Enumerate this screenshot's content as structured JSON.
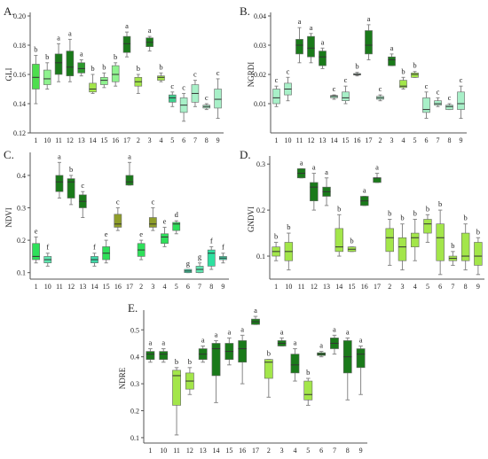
{
  "chart_data": [
    {
      "panel": "A.",
      "type": "box",
      "ylabel": "GLI",
      "ylim": [
        0.12,
        0.2
      ],
      "yticks": [
        "0.12",
        "0.14",
        "0.16",
        "0.18",
        "0.20"
      ],
      "ytick_vals": [
        0.12,
        0.14,
        0.16,
        0.18,
        0.2
      ],
      "categories": [
        "1",
        "10",
        "11",
        "12",
        "13",
        "14",
        "15",
        "16",
        "17",
        "2",
        "3",
        "4",
        "5",
        "6",
        "7",
        "8",
        "9"
      ],
      "boxes": [
        {
          "min": 0.14,
          "q1": 0.15,
          "med": 0.158,
          "q3": 0.167,
          "max": 0.173,
          "letter": "b",
          "color": "#4ede4e"
        },
        {
          "min": 0.15,
          "q1": 0.153,
          "med": 0.157,
          "q3": 0.163,
          "max": 0.168,
          "letter": "b",
          "color": "#8ff38f"
        },
        {
          "min": 0.155,
          "q1": 0.16,
          "med": 0.168,
          "q3": 0.174,
          "max": 0.181,
          "letter": "a",
          "color": "#1a7a1a"
        },
        {
          "min": 0.155,
          "q1": 0.159,
          "med": 0.165,
          "q3": 0.176,
          "max": 0.184,
          "letter": "a",
          "color": "#1a7a1a"
        },
        {
          "min": 0.159,
          "q1": 0.161,
          "med": 0.164,
          "q3": 0.168,
          "max": 0.17,
          "letter": "a",
          "color": "#2d9a2d"
        },
        {
          "min": 0.147,
          "q1": 0.148,
          "med": 0.15,
          "q3": 0.154,
          "max": 0.16,
          "letter": "b",
          "color": "#a3e64a"
        },
        {
          "min": 0.151,
          "q1": 0.153,
          "med": 0.156,
          "q3": 0.158,
          "max": 0.161,
          "letter": "b",
          "color": "#8ff38f"
        },
        {
          "min": 0.152,
          "q1": 0.155,
          "med": 0.16,
          "q3": 0.166,
          "max": 0.168,
          "letter": "b",
          "color": "#8ff38f"
        },
        {
          "min": 0.172,
          "q1": 0.175,
          "med": 0.181,
          "q3": 0.186,
          "max": 0.189,
          "letter": "a",
          "color": "#1a7a1a"
        },
        {
          "min": 0.147,
          "q1": 0.152,
          "med": 0.155,
          "q3": 0.158,
          "max": 0.16,
          "letter": "b",
          "color": "#a3e64a"
        },
        {
          "min": 0.176,
          "q1": 0.179,
          "med": 0.182,
          "q3": 0.185,
          "max": 0.186,
          "letter": "a",
          "color": "#1a7a1a"
        },
        {
          "min": 0.155,
          "q1": 0.156,
          "med": 0.158,
          "q3": 0.159,
          "max": 0.161,
          "letter": "b",
          "color": "#a3e64a"
        },
        {
          "min": 0.138,
          "q1": 0.141,
          "med": 0.144,
          "q3": 0.146,
          "max": 0.148,
          "letter": "c",
          "color": "#3fcf8e"
        },
        {
          "min": 0.128,
          "q1": 0.134,
          "med": 0.139,
          "q3": 0.144,
          "max": 0.147,
          "letter": "c",
          "color": "#a8f0c8"
        },
        {
          "min": 0.138,
          "q1": 0.141,
          "med": 0.147,
          "q3": 0.153,
          "max": 0.156,
          "letter": "c",
          "color": "#a8f0c8"
        },
        {
          "min": 0.136,
          "q1": 0.137,
          "med": 0.138,
          "q3": 0.139,
          "max": 0.14,
          "letter": "c",
          "color": "#a8f0c8"
        },
        {
          "min": 0.13,
          "q1": 0.137,
          "med": 0.143,
          "q3": 0.15,
          "max": 0.157,
          "letter": "c",
          "color": "#a8f0c8"
        }
      ]
    },
    {
      "panel": "B.",
      "type": "box",
      "ylabel": "NGRDI",
      "ylim": [
        0.0,
        0.04
      ],
      "yticks": [
        "0.01",
        "0.02",
        "0.03",
        "0.04"
      ],
      "ytick_vals": [
        0.01,
        0.02,
        0.03,
        0.04
      ],
      "categories": [
        "1",
        "10",
        "11",
        "12",
        "13",
        "14",
        "15",
        "16",
        "17",
        "2",
        "3",
        "4",
        "5",
        "6",
        "7",
        "8",
        "9"
      ],
      "boxes": [
        {
          "min": 0.009,
          "q1": 0.01,
          "med": 0.012,
          "q3": 0.015,
          "max": 0.016,
          "letter": "c",
          "color": "#a8f0c8"
        },
        {
          "min": 0.011,
          "q1": 0.013,
          "med": 0.015,
          "q3": 0.017,
          "max": 0.019,
          "letter": "c",
          "color": "#a8f0c8"
        },
        {
          "min": 0.024,
          "q1": 0.027,
          "med": 0.03,
          "q3": 0.032,
          "max": 0.036,
          "letter": "a",
          "color": "#1a7a1a"
        },
        {
          "min": 0.024,
          "q1": 0.026,
          "med": 0.029,
          "q3": 0.033,
          "max": 0.034,
          "letter": "a",
          "color": "#1a7a1a"
        },
        {
          "min": 0.022,
          "q1": 0.023,
          "med": 0.026,
          "q3": 0.028,
          "max": 0.029,
          "letter": "a",
          "color": "#1a7a1a"
        },
        {
          "min": 0.0115,
          "q1": 0.012,
          "med": 0.0125,
          "q3": 0.0128,
          "max": 0.013,
          "letter": "c",
          "color": "#a8f0c8"
        },
        {
          "min": 0.01,
          "q1": 0.011,
          "med": 0.012,
          "q3": 0.014,
          "max": 0.016,
          "letter": "c",
          "color": "#a8f0c8"
        },
        {
          "min": 0.0195,
          "q1": 0.0198,
          "med": 0.02,
          "q3": 0.0203,
          "max": 0.0207,
          "letter": "b",
          "color": "#a8f0c8"
        },
        {
          "min": 0.025,
          "q1": 0.027,
          "med": 0.03,
          "q3": 0.035,
          "max": 0.037,
          "letter": "a",
          "color": "#1a7a1a"
        },
        {
          "min": 0.011,
          "q1": 0.0115,
          "med": 0.012,
          "q3": 0.0125,
          "max": 0.013,
          "letter": "c",
          "color": "#a8f0c8"
        },
        {
          "min": 0.023,
          "q1": 0.023,
          "med": 0.025,
          "q3": 0.026,
          "max": 0.027,
          "letter": "a",
          "color": "#1a7a1a"
        },
        {
          "min": 0.015,
          "q1": 0.0155,
          "med": 0.016,
          "q3": 0.018,
          "max": 0.019,
          "letter": "b",
          "color": "#a3e64a"
        },
        {
          "min": 0.019,
          "q1": 0.019,
          "med": 0.02,
          "q3": 0.0205,
          "max": 0.021,
          "letter": "b",
          "color": "#a3e64a"
        },
        {
          "min": 0.005,
          "q1": 0.007,
          "med": 0.008,
          "q3": 0.012,
          "max": 0.014,
          "letter": "c",
          "color": "#a8f0c8"
        },
        {
          "min": 0.009,
          "q1": 0.0095,
          "med": 0.01,
          "q3": 0.011,
          "max": 0.012,
          "letter": "c",
          "color": "#a8f0c8"
        },
        {
          "min": 0.008,
          "q1": 0.008,
          "med": 0.009,
          "q3": 0.0095,
          "max": 0.01,
          "letter": "c",
          "color": "#a8f0c8"
        },
        {
          "min": 0.005,
          "q1": 0.008,
          "med": 0.01,
          "q3": 0.014,
          "max": 0.016,
          "letter": "c",
          "color": "#a8f0c8"
        }
      ]
    },
    {
      "panel": "C.",
      "type": "box",
      "ylabel": "NDVI",
      "ylim": [
        0.08,
        0.46
      ],
      "yticks": [
        "0.1",
        "0.2",
        "0.3",
        "0.4"
      ],
      "ytick_vals": [
        0.1,
        0.2,
        0.3,
        0.4
      ],
      "categories": [
        "1",
        "10",
        "11",
        "12",
        "13",
        "14",
        "15",
        "16",
        "17",
        "2",
        "3",
        "4",
        "5",
        "6",
        "7",
        "8",
        "9"
      ],
      "boxes": [
        {
          "min": 0.13,
          "q1": 0.14,
          "med": 0.15,
          "q3": 0.19,
          "max": 0.21,
          "letter": "e",
          "color": "#2ee05a"
        },
        {
          "min": 0.12,
          "q1": 0.13,
          "med": 0.14,
          "q3": 0.15,
          "max": 0.16,
          "letter": "f",
          "color": "#5fe6b0"
        },
        {
          "min": 0.33,
          "q1": 0.35,
          "med": 0.38,
          "q3": 0.4,
          "max": 0.44,
          "letter": "a",
          "color": "#1a7a1a"
        },
        {
          "min": 0.31,
          "q1": 0.33,
          "med": 0.38,
          "q3": 0.39,
          "max": 0.4,
          "letter": "b",
          "color": "#1a7a1a"
        },
        {
          "min": 0.27,
          "q1": 0.3,
          "med": 0.32,
          "q3": 0.34,
          "max": 0.35,
          "letter": "c",
          "color": "#1a7a1a"
        },
        {
          "min": 0.12,
          "q1": 0.13,
          "med": 0.14,
          "q3": 0.15,
          "max": 0.16,
          "letter": "f",
          "color": "#3fd9a8"
        },
        {
          "min": 0.13,
          "q1": 0.14,
          "med": 0.16,
          "q3": 0.18,
          "max": 0.2,
          "letter": "e",
          "color": "#2ee05a"
        },
        {
          "min": 0.23,
          "q1": 0.24,
          "med": 0.25,
          "q3": 0.28,
          "max": 0.3,
          "letter": "c",
          "color": "#8f9e2a"
        },
        {
          "min": 0.37,
          "q1": 0.37,
          "med": 0.38,
          "q3": 0.4,
          "max": 0.44,
          "letter": "a",
          "color": "#1a7a1a"
        },
        {
          "min": 0.14,
          "q1": 0.15,
          "med": 0.17,
          "q3": 0.19,
          "max": 0.2,
          "letter": "e",
          "color": "#2ee05a"
        },
        {
          "min": 0.23,
          "q1": 0.24,
          "med": 0.25,
          "q3": 0.27,
          "max": 0.3,
          "letter": "c",
          "color": "#8f9e2a"
        },
        {
          "min": 0.18,
          "q1": 0.19,
          "med": 0.21,
          "q3": 0.22,
          "max": 0.24,
          "letter": "e",
          "color": "#2ee05a"
        },
        {
          "min": 0.22,
          "q1": 0.23,
          "med": 0.25,
          "q3": 0.255,
          "max": 0.26,
          "letter": "d",
          "color": "#2ee05a"
        },
        {
          "min": 0.1,
          "q1": 0.1,
          "med": 0.105,
          "q3": 0.11,
          "max": 0.11,
          "letter": "g",
          "color": "#3fd9a8"
        },
        {
          "min": 0.1,
          "q1": 0.1,
          "med": 0.11,
          "q3": 0.12,
          "max": 0.13,
          "letter": "g",
          "color": "#5fe6b0"
        },
        {
          "min": 0.11,
          "q1": 0.12,
          "med": 0.16,
          "q3": 0.17,
          "max": 0.18,
          "letter": "f",
          "color": "#2ee0a0"
        },
        {
          "min": 0.13,
          "q1": 0.14,
          "med": 0.145,
          "q3": 0.15,
          "max": 0.16,
          "letter": "f",
          "color": "#3fd9a8"
        }
      ]
    },
    {
      "panel": "D.",
      "type": "box",
      "ylabel": "GNDVI",
      "ylim": [
        0.05,
        0.31
      ],
      "yticks": [
        "0.1",
        "0.2",
        "0.3"
      ],
      "ytick_vals": [
        0.1,
        0.2,
        0.3
      ],
      "categories": [
        "1",
        "10",
        "11",
        "12",
        "13",
        "14",
        "15",
        "16",
        "17",
        "2",
        "3",
        "4",
        "5",
        "6",
        "7",
        "8",
        "9"
      ],
      "boxes": [
        {
          "min": 0.09,
          "q1": 0.1,
          "med": 0.11,
          "q3": 0.12,
          "max": 0.13,
          "letter": "b",
          "color": "#a3e64a"
        },
        {
          "min": 0.07,
          "q1": 0.09,
          "med": 0.11,
          "q3": 0.13,
          "max": 0.15,
          "letter": "b",
          "color": "#a3e64a"
        },
        {
          "min": 0.27,
          "q1": 0.27,
          "med": 0.28,
          "q3": 0.29,
          "max": 0.29,
          "letter": "a",
          "color": "#1a7a1a"
        },
        {
          "min": 0.2,
          "q1": 0.22,
          "med": 0.25,
          "q3": 0.26,
          "max": 0.28,
          "letter": "a",
          "color": "#1a7a1a"
        },
        {
          "min": 0.21,
          "q1": 0.23,
          "med": 0.24,
          "q3": 0.25,
          "max": 0.27,
          "letter": "a",
          "color": "#1a7a1a"
        },
        {
          "min": 0.1,
          "q1": 0.11,
          "med": 0.12,
          "q3": 0.16,
          "max": 0.19,
          "letter": "b",
          "color": "#a3e64a"
        },
        {
          "min": 0.11,
          "q1": 0.11,
          "med": 0.115,
          "q3": 0.12,
          "max": 0.12,
          "letter": "b",
          "color": "#a3e64a"
        },
        {
          "min": 0.21,
          "q1": 0.21,
          "med": 0.22,
          "q3": 0.23,
          "max": 0.23,
          "letter": "a",
          "color": "#1a7a1a"
        },
        {
          "min": 0.26,
          "q1": 0.26,
          "med": 0.27,
          "q3": 0.27,
          "max": 0.28,
          "letter": "a",
          "color": "#1a7a1a"
        },
        {
          "min": 0.08,
          "q1": 0.11,
          "med": 0.14,
          "q3": 0.16,
          "max": 0.18,
          "letter": "b",
          "color": "#a3e64a"
        },
        {
          "min": 0.07,
          "q1": 0.09,
          "med": 0.12,
          "q3": 0.14,
          "max": 0.17,
          "letter": "b",
          "color": "#a3e64a"
        },
        {
          "min": 0.09,
          "q1": 0.12,
          "med": 0.14,
          "q3": 0.15,
          "max": 0.18,
          "letter": "b",
          "color": "#a3e64a"
        },
        {
          "min": 0.13,
          "q1": 0.15,
          "med": 0.17,
          "q3": 0.18,
          "max": 0.19,
          "letter": "b",
          "color": "#a3e64a"
        },
        {
          "min": 0.06,
          "q1": 0.09,
          "med": 0.14,
          "q3": 0.17,
          "max": 0.2,
          "letter": "b",
          "color": "#a3e64a"
        },
        {
          "min": 0.08,
          "q1": 0.09,
          "med": 0.095,
          "q3": 0.1,
          "max": 0.11,
          "letter": "b",
          "color": "#a3e64a"
        },
        {
          "min": 0.07,
          "q1": 0.09,
          "med": 0.1,
          "q3": 0.15,
          "max": 0.17,
          "letter": "b",
          "color": "#a3e64a"
        },
        {
          "min": 0.06,
          "q1": 0.08,
          "med": 0.1,
          "q3": 0.13,
          "max": 0.14,
          "letter": "b",
          "color": "#a3e64a"
        }
      ]
    },
    {
      "panel": "E.",
      "type": "box",
      "ylabel": "NDRE",
      "ylim": [
        0.08,
        0.56
      ],
      "yticks": [
        "0.1",
        "0.2",
        "0.3",
        "0.4",
        "0.5"
      ],
      "ytick_vals": [
        0.1,
        0.2,
        0.3,
        0.4,
        0.5
      ],
      "categories": [
        "1",
        "10",
        "11",
        "12",
        "13",
        "14",
        "15",
        "16",
        "17",
        "2",
        "3",
        "4",
        "5",
        "6",
        "7",
        "8",
        "9"
      ],
      "boxes": [
        {
          "min": 0.38,
          "q1": 0.39,
          "med": 0.41,
          "q3": 0.42,
          "max": 0.43,
          "letter": "a",
          "color": "#1a7a1a"
        },
        {
          "min": 0.38,
          "q1": 0.39,
          "med": 0.41,
          "q3": 0.42,
          "max": 0.43,
          "letter": "a",
          "color": "#1a7a1a"
        },
        {
          "min": 0.11,
          "q1": 0.22,
          "med": 0.33,
          "q3": 0.35,
          "max": 0.36,
          "letter": "b",
          "color": "#a3e64a"
        },
        {
          "min": 0.26,
          "q1": 0.28,
          "med": 0.31,
          "q3": 0.34,
          "max": 0.36,
          "letter": "b",
          "color": "#a3e64a"
        },
        {
          "min": 0.38,
          "q1": 0.39,
          "med": 0.41,
          "q3": 0.43,
          "max": 0.44,
          "letter": "a",
          "color": "#1a7a1a"
        },
        {
          "min": 0.23,
          "q1": 0.33,
          "med": 0.43,
          "q3": 0.45,
          "max": 0.46,
          "letter": "a",
          "color": "#1a7a1a"
        },
        {
          "min": 0.37,
          "q1": 0.39,
          "med": 0.42,
          "q3": 0.45,
          "max": 0.47,
          "letter": "a",
          "color": "#1a7a1a"
        },
        {
          "min": 0.3,
          "q1": 0.38,
          "med": 0.43,
          "q3": 0.46,
          "max": 0.48,
          "letter": "a",
          "color": "#1a7a1a"
        },
        {
          "min": 0.52,
          "q1": 0.52,
          "med": 0.53,
          "q3": 0.54,
          "max": 0.55,
          "letter": "a",
          "color": "#1a7a1a"
        },
        {
          "min": 0.25,
          "q1": 0.32,
          "med": 0.38,
          "q3": 0.39,
          "max": 0.39,
          "letter": "b",
          "color": "#a3e64a"
        },
        {
          "min": 0.44,
          "q1": 0.44,
          "med": 0.45,
          "q3": 0.46,
          "max": 0.47,
          "letter": "a",
          "color": "#1a7a1a"
        },
        {
          "min": 0.31,
          "q1": 0.34,
          "med": 0.37,
          "q3": 0.41,
          "max": 0.43,
          "letter": "a",
          "color": "#1a7a1a"
        },
        {
          "min": 0.22,
          "q1": 0.24,
          "med": 0.26,
          "q3": 0.31,
          "max": 0.32,
          "letter": "b",
          "color": "#a3e64a"
        },
        {
          "min": 0.4,
          "q1": 0.405,
          "med": 0.41,
          "q3": 0.415,
          "max": 0.42,
          "letter": "a",
          "color": "#1a7a1a"
        },
        {
          "min": 0.41,
          "q1": 0.43,
          "med": 0.45,
          "q3": 0.47,
          "max": 0.48,
          "letter": "a",
          "color": "#1a7a1a"
        },
        {
          "min": 0.24,
          "q1": 0.34,
          "med": 0.4,
          "q3": 0.46,
          "max": 0.47,
          "letter": "a",
          "color": "#1a7a1a"
        },
        {
          "min": 0.26,
          "q1": 0.36,
          "med": 0.41,
          "q3": 0.43,
          "max": 0.44,
          "letter": "a",
          "color": "#1a7a1a"
        }
      ]
    }
  ]
}
